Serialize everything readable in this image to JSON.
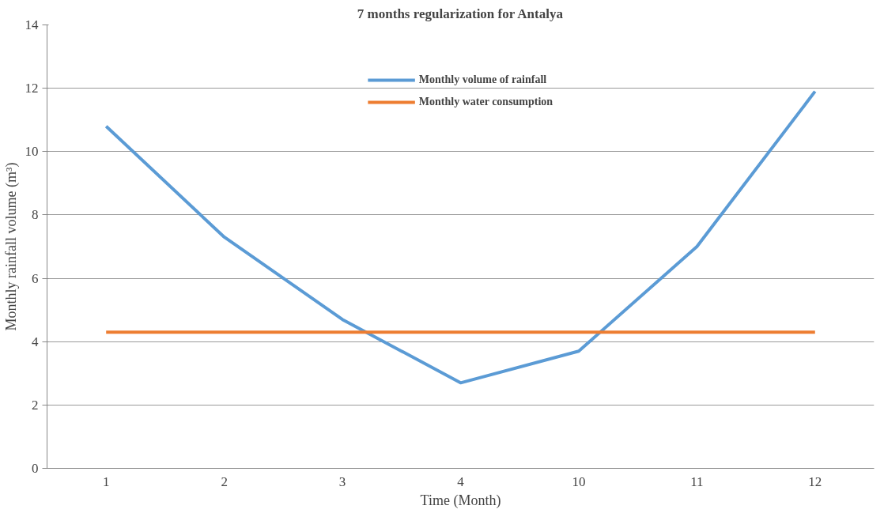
{
  "chart_data": {
    "type": "line",
    "title": "7 months regularization for Antalya",
    "xlabel": "Time (Month)",
    "ylabel": "Monthly rainfall volume (m³)",
    "categories": [
      "1",
      "2",
      "3",
      "4",
      "10",
      "11",
      "12"
    ],
    "series": [
      {
        "name": "Monthly volume of rainfall",
        "color": "#5b9bd5",
        "values": [
          10.8,
          7.3,
          4.7,
          2.7,
          3.7,
          7.0,
          11.9
        ]
      },
      {
        "name": "Monthly water consumption",
        "color": "#ed7d31",
        "values": [
          4.3,
          4.3,
          4.3,
          4.3,
          4.3,
          4.3,
          4.3
        ]
      }
    ],
    "ylim": [
      0,
      14
    ],
    "yticks": [
      0,
      2,
      4,
      6,
      8,
      10,
      12,
      14
    ],
    "grid": "y",
    "legend": "top",
    "marker": "none",
    "line_style": "solid"
  }
}
